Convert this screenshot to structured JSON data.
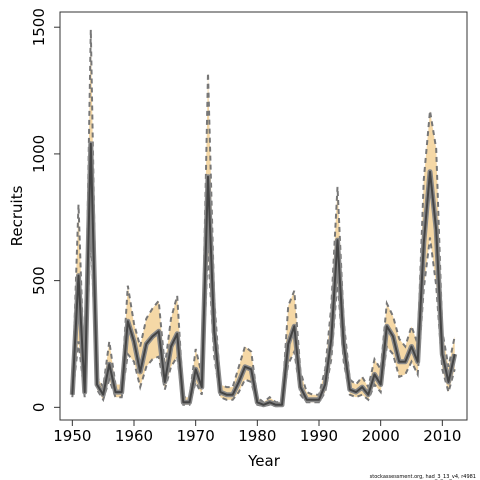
{
  "chart_data": {
    "type": "line",
    "xlabel": "Year",
    "ylabel": "Recruits",
    "xlim": [
      1948,
      2014
    ],
    "ylim": [
      -50,
      1560
    ],
    "x_ticks": [
      1950,
      1960,
      1970,
      1980,
      1990,
      2000,
      2010
    ],
    "y_ticks": [
      0,
      500,
      1000,
      1500
    ],
    "x": [
      1950,
      1951,
      1952,
      1953,
      1954,
      1955,
      1956,
      1957,
      1958,
      1959,
      1960,
      1961,
      1962,
      1963,
      1964,
      1965,
      1966,
      1967,
      1968,
      1969,
      1970,
      1971,
      1972,
      1973,
      1974,
      1975,
      1976,
      1977,
      1978,
      1979,
      1980,
      1981,
      1982,
      1983,
      1984,
      1985,
      1986,
      1987,
      1988,
      1989,
      1990,
      1991,
      1992,
      1993,
      1994,
      1995,
      1996,
      1997,
      1998,
      1999,
      2000,
      2001,
      2002,
      2003,
      2004,
      2005,
      2006,
      2007,
      2008,
      2009,
      2010,
      2011,
      2012
    ],
    "series": [
      {
        "role": "estimate",
        "color": "#555555",
        "values": [
          50,
          520,
          60,
          1040,
          90,
          50,
          170,
          60,
          60,
          340,
          260,
          140,
          250,
          280,
          300,
          100,
          240,
          290,
          20,
          20,
          150,
          80,
          910,
          300,
          60,
          50,
          50,
          100,
          160,
          150,
          20,
          10,
          20,
          10,
          10,
          250,
          320,
          80,
          30,
          30,
          30,
          90,
          270,
          660,
          250,
          70,
          60,
          80,
          50,
          130,
          90,
          320,
          280,
          180,
          180,
          240,
          180,
          650,
          930,
          700,
          210,
          100,
          210
        ]
      },
      {
        "role": "upper",
        "color": "#777777",
        "values": [
          70,
          800,
          80,
          1490,
          120,
          80,
          260,
          90,
          90,
          480,
          330,
          240,
          350,
          390,
          420,
          160,
          350,
          440,
          40,
          40,
          230,
          130,
          1320,
          430,
          90,
          80,
          80,
          160,
          240,
          220,
          40,
          20,
          40,
          20,
          20,
          400,
          460,
          140,
          60,
          50,
          50,
          150,
          400,
          870,
          340,
          110,
          90,
          120,
          80,
          190,
          150,
          410,
          360,
          270,
          240,
          320,
          250,
          900,
          1170,
          1020,
          300,
          160,
          280
        ]
      },
      {
        "role": "lower",
        "color": "#777777",
        "values": [
          40,
          260,
          40,
          700,
          70,
          30,
          110,
          40,
          40,
          210,
          180,
          80,
          160,
          190,
          200,
          70,
          160,
          200,
          10,
          10,
          100,
          50,
          620,
          200,
          40,
          30,
          30,
          60,
          110,
          100,
          10,
          5,
          10,
          5,
          5,
          170,
          220,
          50,
          20,
          20,
          20,
          60,
          190,
          500,
          180,
          50,
          40,
          50,
          30,
          90,
          60,
          240,
          210,
          120,
          130,
          180,
          130,
          470,
          670,
          480,
          150,
          60,
          150
        ]
      }
    ],
    "band_fill": "#f5d8a6",
    "footnote": "stockassessment.org, had_3_13_v4, r4981"
  }
}
